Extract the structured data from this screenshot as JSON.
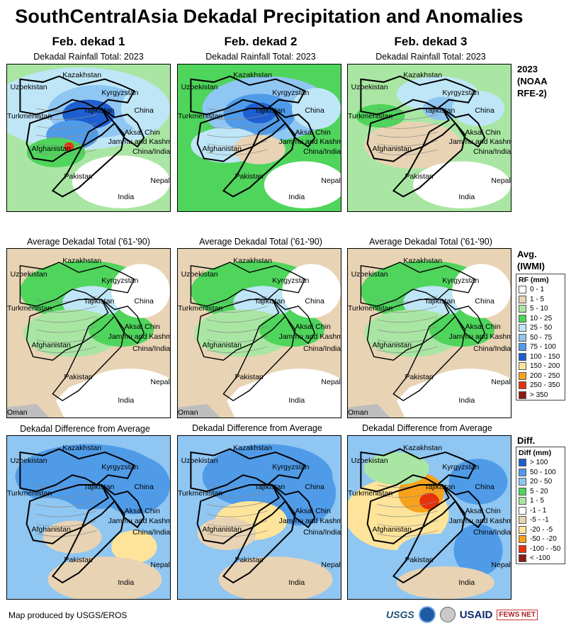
{
  "title": "SouthCentralAsia Dekadal Precipitation and Anomalies",
  "columns": [
    {
      "header": "Feb. dekad 1"
    },
    {
      "header": "Feb. dekad 2"
    },
    {
      "header": "Feb. dekad 3"
    }
  ],
  "rows": [
    {
      "subtitle": "Dekadal Rainfall Total: 2023",
      "kind": "rainfall"
    },
    {
      "subtitle": "Average Dekadal Total ('61-'90)",
      "kind": "average"
    },
    {
      "subtitle": "Dekadal Difference from Average",
      "kind": "difference"
    }
  ],
  "map_labels": {
    "kazakhstan": "Kazakhstan",
    "uzbekistan": "Uzbekistan",
    "kyrgyzstan": "Kyrgyzstan",
    "turkmenistan": "Turkmenistan",
    "tajikistan": "Tajikistan",
    "china": "China",
    "aksai_chin": "Aksai Chin",
    "jammu": "Jammu and Kashmir",
    "china_india": "China/India",
    "afghanistan": "Afghanistan",
    "pakistan": "Pakistan",
    "nepal": "Nepal",
    "india": "India",
    "oman": "Oman"
  },
  "side_titles": {
    "rainfall": [
      "2023",
      "(NOAA",
      "RFE-2)"
    ],
    "average": [
      "Avg.",
      "(IWMI)"
    ],
    "difference": [
      "Diff."
    ]
  },
  "rf_legend": {
    "title": "RF (mm)",
    "items": [
      {
        "label": "0 - 1",
        "color": "#ffffff"
      },
      {
        "label": "1 - 5",
        "color": "#e8d3b4"
      },
      {
        "label": "5 - 10",
        "color": "#a9e6a3"
      },
      {
        "label": "10 - 25",
        "color": "#4fd45c"
      },
      {
        "label": "25 - 50",
        "color": "#bfe6f7"
      },
      {
        "label": "50 - 75",
        "color": "#8fc6f2"
      },
      {
        "label": "75 - 100",
        "color": "#4f9be8"
      },
      {
        "label": "100 - 150",
        "color": "#1d5fd0"
      },
      {
        "label": "150 - 200",
        "color": "#fde49a"
      },
      {
        "label": "200 - 250",
        "color": "#f7a21c"
      },
      {
        "label": "250 - 350",
        "color": "#e8320c"
      },
      {
        "label": "> 350",
        "color": "#8b1a12"
      }
    ]
  },
  "diff_legend": {
    "title": "Diff (mm)",
    "items": [
      {
        "label": "> 100",
        "color": "#1d5fd0"
      },
      {
        "label": "50 - 100",
        "color": "#4f9be8"
      },
      {
        "label": "20 - 50",
        "color": "#8fc6f2"
      },
      {
        "label": "5 - 20",
        "color": "#4fd45c"
      },
      {
        "label": "1 - 5",
        "color": "#a9e6a3"
      },
      {
        "label": "-1 - 1",
        "color": "#ffffff"
      },
      {
        "label": "-5 - -1",
        "color": "#e8d3b4"
      },
      {
        "label": "-20 - -5",
        "color": "#fde49a"
      },
      {
        "label": "-50 - -20",
        "color": "#f7a21c"
      },
      {
        "label": "-100 - -50",
        "color": "#e8320c"
      },
      {
        "label": "< -100",
        "color": "#8b1a12"
      }
    ]
  },
  "credit": "Map produced by USGS/EROS",
  "logos": {
    "usgs": "USGS",
    "usaid": "USAID",
    "fews": "FEWS NET"
  }
}
